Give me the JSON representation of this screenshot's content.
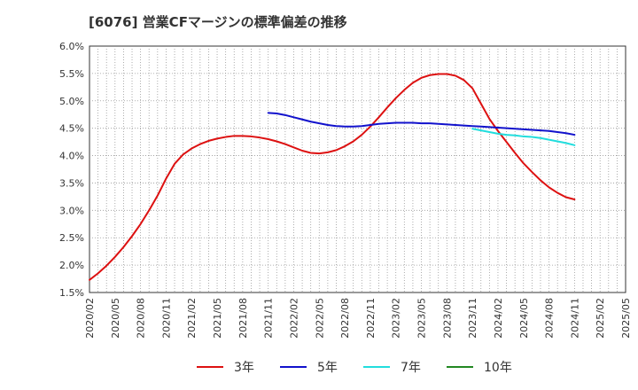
{
  "title": "[6076]  営業CFマージンの標準偏差の推移",
  "chart_data": {
    "type": "line",
    "title": "[6076]  営業CFマージンの標準偏差の推移",
    "xlabel": "",
    "ylabel": "",
    "ylim": [
      1.5,
      6.0
    ],
    "yticks": [
      "1.5%",
      "2.0%",
      "2.5%",
      "3.0%",
      "3.5%",
      "4.0%",
      "4.5%",
      "5.0%",
      "5.5%",
      "6.0%"
    ],
    "xticks": [
      "2020/02",
      "2020/05",
      "2020/08",
      "2020/11",
      "2021/02",
      "2021/05",
      "2021/08",
      "2021/11",
      "2022/02",
      "2022/05",
      "2022/08",
      "2022/11",
      "2023/02",
      "2023/05",
      "2023/08",
      "2023/11",
      "2024/02",
      "2024/05",
      "2024/08",
      "2024/11",
      "2025/02",
      "2025/05"
    ],
    "grid": true,
    "legend_position": "bottom",
    "series": [
      {
        "name": "3年",
        "color": "#dd1111",
        "x": [
          "2020/02",
          "2020/03",
          "2020/04",
          "2020/05",
          "2020/06",
          "2020/07",
          "2020/08",
          "2020/09",
          "2020/10",
          "2020/11",
          "2020/12",
          "2021/01",
          "2021/02",
          "2021/03",
          "2021/04",
          "2021/05",
          "2021/06",
          "2021/07",
          "2021/08",
          "2021/09",
          "2021/10",
          "2021/11",
          "2021/12",
          "2022/01",
          "2022/02",
          "2022/03",
          "2022/04",
          "2022/05",
          "2022/06",
          "2022/07",
          "2022/08",
          "2022/09",
          "2022/10",
          "2022/11",
          "2022/12",
          "2023/01",
          "2023/02",
          "2023/03",
          "2023/04",
          "2023/05",
          "2023/06",
          "2023/07",
          "2023/08",
          "2023/09",
          "2023/10",
          "2023/11",
          "2023/12",
          "2024/01",
          "2024/02",
          "2024/03",
          "2024/04",
          "2024/05",
          "2024/06",
          "2024/07",
          "2024/08",
          "2024/09",
          "2024/10",
          "2024/11"
        ],
        "values": [
          1.73,
          1.85,
          1.99,
          2.15,
          2.33,
          2.53,
          2.75,
          3.0,
          3.27,
          3.58,
          3.85,
          4.02,
          4.13,
          4.21,
          4.27,
          4.31,
          4.34,
          4.36,
          4.36,
          4.35,
          4.33,
          4.3,
          4.26,
          4.21,
          4.15,
          4.09,
          4.05,
          4.04,
          4.06,
          4.1,
          4.17,
          4.26,
          4.38,
          4.53,
          4.7,
          4.88,
          5.05,
          5.2,
          5.33,
          5.42,
          5.47,
          5.49,
          5.49,
          5.46,
          5.38,
          5.23,
          4.95,
          4.67,
          4.45,
          4.25,
          4.05,
          3.86,
          3.7,
          3.55,
          3.42,
          3.32,
          3.24,
          3.2
        ]
      },
      {
        "name": "5年",
        "color": "#1111cc",
        "x": [
          "2021/11",
          "2021/12",
          "2022/01",
          "2022/02",
          "2022/03",
          "2022/04",
          "2022/05",
          "2022/06",
          "2022/07",
          "2022/08",
          "2022/09",
          "2022/10",
          "2022/11",
          "2022/12",
          "2023/01",
          "2023/02",
          "2023/03",
          "2023/04",
          "2023/05",
          "2023/06",
          "2023/07",
          "2023/08",
          "2023/09",
          "2023/10",
          "2023/11",
          "2023/12",
          "2024/01",
          "2024/02",
          "2024/03",
          "2024/04",
          "2024/05",
          "2024/06",
          "2024/07",
          "2024/08",
          "2024/09",
          "2024/10",
          "2024/11"
        ],
        "values": [
          4.78,
          4.77,
          4.74,
          4.7,
          4.66,
          4.62,
          4.59,
          4.56,
          4.54,
          4.53,
          4.53,
          4.54,
          4.56,
          4.58,
          4.59,
          4.6,
          4.6,
          4.6,
          4.59,
          4.59,
          4.58,
          4.57,
          4.56,
          4.55,
          4.54,
          4.53,
          4.52,
          4.51,
          4.5,
          4.49,
          4.48,
          4.47,
          4.46,
          4.45,
          4.43,
          4.41,
          4.38
        ]
      },
      {
        "name": "7年",
        "color": "#22dddd",
        "x": [
          "2023/11",
          "2023/12",
          "2024/01",
          "2024/02",
          "2024/03",
          "2024/04",
          "2024/05",
          "2024/06",
          "2024/07",
          "2024/08",
          "2024/09",
          "2024/10",
          "2024/11"
        ],
        "values": [
          4.49,
          4.46,
          4.43,
          4.4,
          4.38,
          4.37,
          4.35,
          4.34,
          4.32,
          4.29,
          4.26,
          4.23,
          4.19
        ]
      },
      {
        "name": "10年",
        "color": "#228822",
        "x": [],
        "values": []
      }
    ]
  }
}
